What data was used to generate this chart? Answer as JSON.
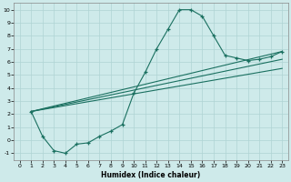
{
  "xlabel": "Humidex (Indice chaleur)",
  "ylabel": "",
  "background_color": "#ceeaea",
  "grid_color": "#afd4d4",
  "line_color": "#1a7060",
  "xlim": [
    -0.5,
    23.5
  ],
  "ylim": [
    -1.5,
    10.5
  ],
  "xticks": [
    0,
    1,
    2,
    3,
    4,
    5,
    6,
    7,
    8,
    9,
    10,
    11,
    12,
    13,
    14,
    15,
    16,
    17,
    18,
    19,
    20,
    21,
    22,
    23
  ],
  "yticks": [
    -1,
    0,
    1,
    2,
    3,
    4,
    5,
    6,
    7,
    8,
    9,
    10
  ],
  "main_x": [
    1,
    2,
    3,
    4,
    5,
    6,
    7,
    8,
    9,
    10,
    11,
    12,
    13,
    14,
    15,
    16,
    17,
    18,
    19,
    20,
    21,
    22,
    23
  ],
  "main_y": [
    2.2,
    0.3,
    -0.8,
    -1.0,
    -0.3,
    -0.2,
    0.3,
    0.7,
    1.2,
    3.6,
    5.2,
    7.0,
    8.5,
    10.0,
    10.0,
    9.5,
    8.0,
    6.5,
    6.3,
    6.1,
    6.2,
    6.4,
    6.8
  ],
  "line3_x": [
    1,
    23
  ],
  "line3_y": [
    2.2,
    6.8
  ],
  "line4_x": [
    1,
    23
  ],
  "line4_y": [
    2.2,
    6.2
  ],
  "line5_x": [
    1,
    23
  ],
  "line5_y": [
    2.2,
    5.5
  ]
}
